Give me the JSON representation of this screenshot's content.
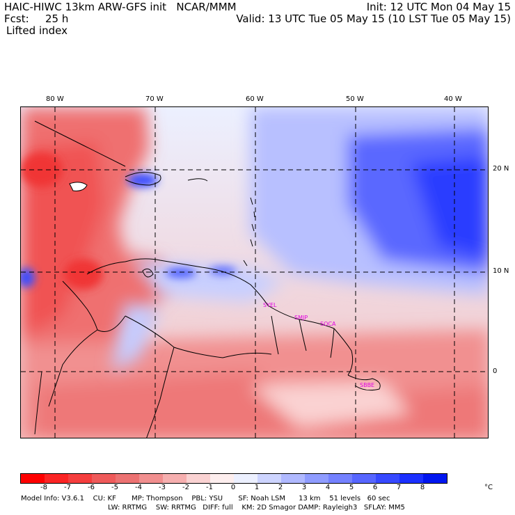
{
  "header": {
    "model_line": "HAIC-HIWC 13km ARW-GFS init   NCAR/MMM",
    "init": "Init: 12 UTC Mon 04 May 15",
    "fcst_label": "Fcst:",
    "fcst_value": "25 h",
    "valid": "Valid: 13 UTC Tue 05 May 15 (10 LST Tue 05 May 15)",
    "field": "Lifted index"
  },
  "map": {
    "lon_labels": [
      "80 W",
      "70 W",
      "60 W",
      "50 W",
      "40 W"
    ],
    "lat_labels": [
      "20 N",
      "10 N",
      "0"
    ],
    "stations": [
      "SYEL",
      "SMJP",
      "SOCA",
      "SBBE"
    ]
  },
  "colorbar": {
    "labels": [
      "-8",
      "-7",
      "-6",
      "-5",
      "-4",
      "-3",
      "-2",
      "-1",
      "0",
      "1",
      "2",
      "3",
      "4",
      "5",
      "6",
      "7",
      "8"
    ],
    "unit": "°C",
    "colors": [
      "#ff0000",
      "#fb2424",
      "#f53e3e",
      "#ef5a5a",
      "#ec7272",
      "#f18f8f",
      "#f6afaf",
      "#fad2d2",
      "#fdeeee",
      "#ecf0ff",
      "#cdd4ff",
      "#b0b9ff",
      "#8f9cff",
      "#7481ff",
      "#5766ff",
      "#3749ff",
      "#1b30ff",
      "#0016f0"
    ]
  },
  "footer": {
    "line1": "Model Info: V3.6.1    CU: KF       MP: Thompson    PBL: YSU       SF: Noah LSM      13 km    51 levels   60 sec",
    "line2": "LW: RRTMG    SW: RRTMG   DIFF: full    KM: 2D Smagor DAMP: Rayleigh3   SFLAY: MM5"
  },
  "colors": {
    "station": "#e000e0",
    "grid": "#000000"
  }
}
